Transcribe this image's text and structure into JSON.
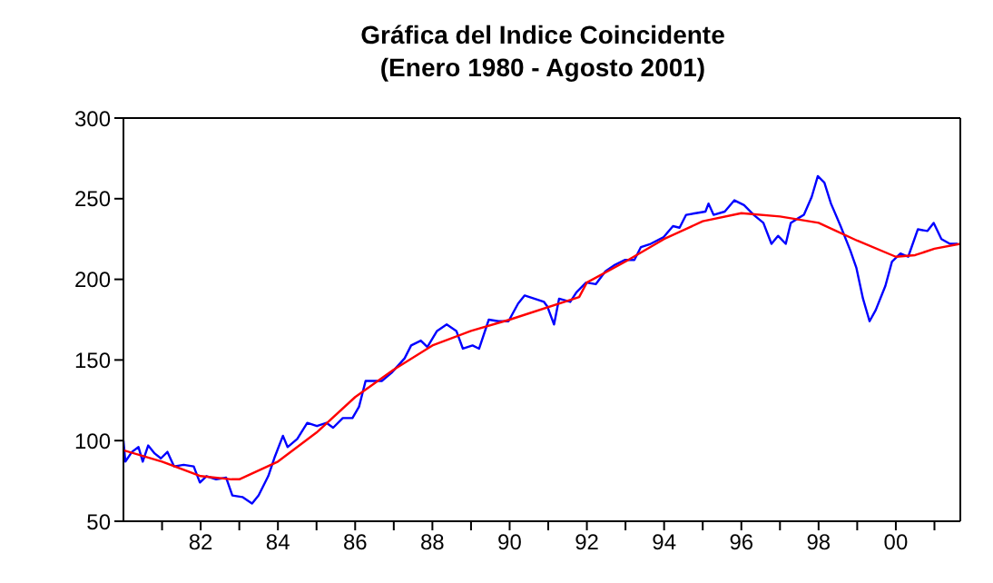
{
  "chart_data": {
    "type": "line",
    "title": "Gráfica del Indice Coincidente\n(Enero 1980 - Agosto 2001)",
    "xlim": [
      1980,
      2001.67
    ],
    "xticks": [
      {
        "value": 1981,
        "label": null
      },
      {
        "value": 1982,
        "label": "82"
      },
      {
        "value": 1983,
        "label": null
      },
      {
        "value": 1984,
        "label": "84"
      },
      {
        "value": 1985,
        "label": null
      },
      {
        "value": 1986,
        "label": "86"
      },
      {
        "value": 1987,
        "label": null
      },
      {
        "value": 1988,
        "label": "88"
      },
      {
        "value": 1989,
        "label": null
      },
      {
        "value": 1990,
        "label": "90"
      },
      {
        "value": 1991,
        "label": null
      },
      {
        "value": 1992,
        "label": "92"
      },
      {
        "value": 1993,
        "label": null
      },
      {
        "value": 1994,
        "label": "94"
      },
      {
        "value": 1995,
        "label": null
      },
      {
        "value": 1996,
        "label": "96"
      },
      {
        "value": 1997,
        "label": null
      },
      {
        "value": 1998,
        "label": "98"
      },
      {
        "value": 1999,
        "label": null
      },
      {
        "value": 2000,
        "label": "00"
      },
      {
        "value": 2001,
        "label": null
      }
    ],
    "ylim": [
      50,
      300
    ],
    "yticks": [
      50,
      100,
      150,
      200,
      250,
      300
    ],
    "grid": false,
    "legend": false,
    "marker": "none",
    "line_style": "solid",
    "series": [
      {
        "color": "#0000ff",
        "x": [
          1980,
          1980.05,
          1980.22,
          1980.39,
          1980.5,
          1980.64,
          1980.81,
          1980.97,
          1981.14,
          1981.31,
          1981.56,
          1981.82,
          1981.98,
          1982.15,
          1982.4,
          1982.66,
          1982.82,
          1983.08,
          1983.33,
          1983.5,
          1983.75,
          1983.92,
          1984.13,
          1984.25,
          1984.5,
          1984.76,
          1985.01,
          1985.26,
          1985.43,
          1985.68,
          1985.93,
          1986.1,
          1986.27,
          1986.52,
          1986.69,
          1986.94,
          1987.28,
          1987.45,
          1987.7,
          1987.87,
          1988.12,
          1988.37,
          1988.62,
          1988.79,
          1989.04,
          1989.21,
          1989.46,
          1989.71,
          1989.97,
          1990.22,
          1990.39,
          1990.64,
          1990.89,
          1990.98,
          1991.15,
          1991.28,
          1991.57,
          1991.73,
          1991.98,
          1992.23,
          1992.48,
          1992.73,
          1992.98,
          1993.23,
          1993.4,
          1993.65,
          1993.98,
          1994.23,
          1994.4,
          1994.57,
          1994.82,
          1995.07,
          1995.15,
          1995.28,
          1995.57,
          1995.82,
          1996.07,
          1996.32,
          1996.57,
          1996.78,
          1996.95,
          1997.15,
          1997.28,
          1997.48,
          1997.62,
          1997.82,
          1997.98,
          1998.15,
          1998.32,
          1998.57,
          1998.82,
          1998.98,
          1999.15,
          1999.32,
          1999.48,
          1999.73,
          1999.9,
          2000.12,
          2000.32,
          2000.57,
          2000.82,
          2000.98,
          2001.18,
          2001.4,
          2001.6
        ],
        "values": [
          100,
          87,
          93,
          96,
          87,
          97,
          92,
          89,
          93,
          84,
          85,
          84,
          74,
          78,
          76,
          77,
          66,
          65,
          61,
          66,
          78,
          90,
          103,
          96,
          101,
          111,
          109,
          111,
          108,
          114,
          114,
          121,
          137,
          137,
          137,
          142,
          151,
          159,
          162,
          158,
          168,
          172,
          168,
          157,
          159,
          157,
          175,
          174,
          174,
          185,
          190,
          188,
          186,
          183,
          172,
          188,
          186,
          192,
          198,
          197,
          205,
          209,
          212,
          212,
          220,
          222,
          226,
          233,
          232,
          240,
          241,
          242,
          247,
          240,
          242,
          249,
          246,
          240,
          235,
          222,
          227,
          222,
          235,
          238,
          240,
          251,
          264,
          260,
          247,
          233,
          218,
          207,
          188,
          174,
          181,
          196,
          211,
          216,
          214,
          231,
          230,
          235,
          225,
          222,
          222
        ]
      },
      {
        "color": "#ff0000",
        "x": [
          1980,
          1981,
          1982,
          1982.8,
          1983,
          1984,
          1985,
          1986,
          1987,
          1988,
          1989,
          1990,
          1991.8,
          1992,
          1993,
          1994,
          1995,
          1996,
          1997,
          1998,
          1999,
          2000,
          2000.5,
          2001,
          2001.67
        ],
        "values": [
          94,
          87,
          78,
          76,
          76,
          87,
          105,
          127,
          144,
          159,
          168,
          175,
          189,
          198,
          211,
          225,
          236,
          241,
          239,
          235,
          224,
          214,
          215,
          219,
          222
        ]
      }
    ]
  }
}
